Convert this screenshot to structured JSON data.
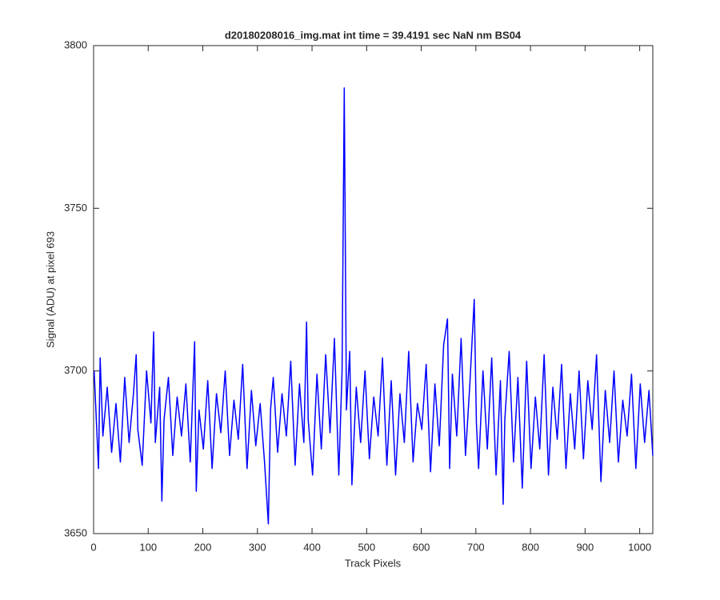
{
  "chart_data": {
    "type": "line",
    "title": "d20180208016_img.mat int time = 39.4191 sec  NaN nm BS04",
    "xlabel": "Track Pixels",
    "ylabel": "Signal (ADU) at pixel 693",
    "color": "#0000ff",
    "xlim": [
      0,
      1024
    ],
    "xticks": [
      0,
      100,
      200,
      300,
      400,
      500,
      600,
      700,
      800,
      900,
      1000
    ],
    "ylim": [
      3650,
      3800
    ],
    "yticks": [
      3650,
      3700,
      3750,
      3800
    ],
    "x": [
      1,
      9,
      12,
      17,
      25,
      33,
      41,
      49,
      57,
      65,
      73,
      78,
      81,
      89,
      97,
      105,
      110,
      113,
      121,
      125,
      129,
      137,
      145,
      153,
      161,
      169,
      177,
      185,
      188,
      193,
      201,
      209,
      217,
      225,
      233,
      241,
      249,
      257,
      265,
      273,
      281,
      289,
      297,
      305,
      313,
      320,
      324,
      329,
      337,
      345,
      353,
      361,
      369,
      377,
      385,
      390,
      393,
      401,
      409,
      417,
      425,
      433,
      441,
      449,
      455,
      459,
      463,
      469,
      473,
      481,
      489,
      497,
      505,
      513,
      521,
      529,
      537,
      545,
      553,
      561,
      569,
      577,
      585,
      593,
      601,
      609,
      617,
      625,
      633,
      641,
      648,
      652,
      657,
      665,
      673,
      681,
      689,
      697,
      701,
      705,
      713,
      721,
      729,
      737,
      745,
      750,
      753,
      761,
      769,
      777,
      785,
      793,
      801,
      809,
      817,
      825,
      833,
      841,
      849,
      857,
      865,
      873,
      881,
      889,
      897,
      905,
      913,
      921,
      929,
      937,
      945,
      953,
      961,
      969,
      977,
      985,
      993,
      1001,
      1009,
      1017,
      1024
    ],
    "values": [
      3700,
      3670,
      3704,
      3680,
      3695,
      3675,
      3690,
      3672,
      3698,
      3678,
      3693,
      3705,
      3682,
      3671,
      3700,
      3684,
      3712,
      3678,
      3695,
      3660,
      3685,
      3698,
      3674,
      3692,
      3680,
      3696,
      3672,
      3709,
      3663,
      3688,
      3676,
      3697,
      3670,
      3693,
      3681,
      3700,
      3674,
      3691,
      3679,
      3702,
      3670,
      3694,
      3677,
      3690,
      3672,
      3653,
      3688,
      3698,
      3675,
      3693,
      3680,
      3703,
      3671,
      3696,
      3678,
      3715,
      3685,
      3668,
      3699,
      3676,
      3705,
      3681,
      3710,
      3668,
      3700,
      3787,
      3688,
      3706,
      3665,
      3695,
      3678,
      3700,
      3673,
      3692,
      3680,
      3704,
      3671,
      3697,
      3668,
      3693,
      3678,
      3706,
      3672,
      3690,
      3682,
      3702,
      3669,
      3696,
      3677,
      3708,
      3716,
      3670,
      3699,
      3680,
      3710,
      3674,
      3696,
      3722,
      3684,
      3670,
      3700,
      3676,
      3704,
      3668,
      3697,
      3659,
      3685,
      3706,
      3672,
      3698,
      3664,
      3703,
      3670,
      3692,
      3676,
      3705,
      3668,
      3695,
      3679,
      3702,
      3670,
      3693,
      3676,
      3700,
      3673,
      3697,
      3682,
      3705,
      3666,
      3694,
      3678,
      3700,
      3672,
      3691,
      3680,
      3699,
      3670,
      3696,
      3678,
      3694,
      3674
    ]
  }
}
